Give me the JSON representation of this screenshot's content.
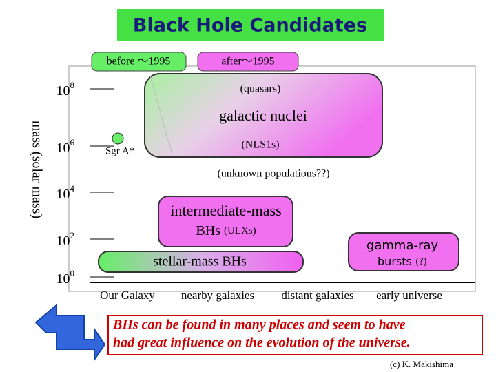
{
  "title": "Black Hole Candidates",
  "legend": {
    "before": "before ～1995",
    "after": "after～1995"
  },
  "y_axis": {
    "label": "mass (solar mass)",
    "ticks": [
      {
        "base": "10",
        "exp": "8"
      },
      {
        "base": "10",
        "exp": "6"
      },
      {
        "base": "10",
        "exp": "4"
      },
      {
        "base": "10",
        "exp": "2"
      },
      {
        "base": "10",
        "exp": "0"
      }
    ]
  },
  "regions": {
    "nuclei": {
      "top": "(quasars)",
      "middle": "galactic nuclei",
      "bottom": "(NLS1s)"
    },
    "sgr": "Sgr A*",
    "unknown": "(unknown populations??)",
    "intermediate": {
      "line1": "intermediate-mass",
      "line2": "BHs",
      "note": "(ULXs)"
    },
    "stellar": "stellar-mass BHs",
    "gamma": {
      "line1": "gamma-ray",
      "line2": "bursts",
      "note": "(?)"
    }
  },
  "x_axis": {
    "categories": [
      "Our Galaxy",
      "nearby galaxies",
      "distant galaxies",
      "early universe"
    ]
  },
  "message": [
    "BHs can be found in many places and seem to have",
    "had great influence on the evolution of the universe."
  ],
  "credit": "(c)  K. Makishima"
}
